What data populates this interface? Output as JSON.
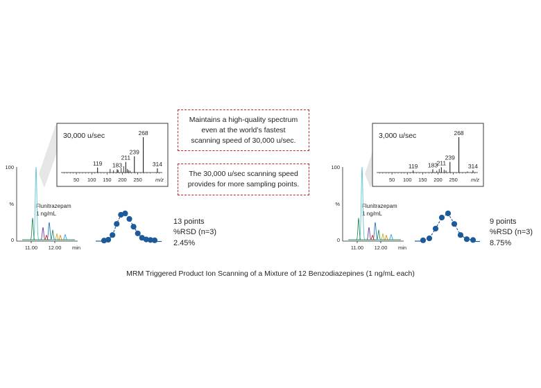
{
  "caption": "MRM Triggered Product Ion Scanning of a Mixture of 12 Benzodiazepines (1 ng/mL each)",
  "notes": [
    {
      "lines": [
        "Maintains a high-quality spectrum",
        "even at the world’s fastest",
        "scanning speed of 30,000 u/sec."
      ]
    },
    {
      "lines": [
        "The 30,000 u/sec scanning speed",
        "provides for more sampling points."
      ]
    }
  ],
  "accent_color": "#c1272d",
  "peak_color": "#1d5a99",
  "chart_data": [
    {
      "type": "line",
      "name": "chromatogram-left",
      "y_ticks": [
        "100",
        "%",
        "0"
      ],
      "x_ticks": [
        "11.00",
        "12.00"
      ],
      "x_unit": "min",
      "compound_label": [
        "Flunitrazepam",
        "1 ng/mL"
      ],
      "colors": [
        "#5bc3d0",
        "#2e8b57",
        "#6a3d9a",
        "#1f78b4",
        "#e31a1c",
        "#b2b23a",
        "#ff7f00",
        "#33a0dc"
      ]
    },
    {
      "type": "bar",
      "name": "spectrum-left",
      "title": "30,000 u/sec",
      "title_color": "#c1272d",
      "x_ticks": [
        50,
        100,
        150,
        200,
        250
      ],
      "xlim": [
        0,
        330
      ],
      "xlabel": "m/z",
      "labeled_peaks": [
        {
          "mz": 119,
          "label": "119",
          "rel": 0.14
        },
        {
          "mz": 183,
          "label": "183",
          "rel": 0.09
        },
        {
          "mz": 211,
          "label": "211",
          "rel": 0.3
        },
        {
          "mz": 239,
          "label": "239",
          "rel": 0.46
        },
        {
          "mz": 268,
          "label": "268",
          "rel": 1.0
        },
        {
          "mz": 314,
          "label": "314",
          "rel": 0.12
        }
      ],
      "minor_peaks": [
        {
          "mz": 160,
          "rel": 0.1
        },
        {
          "mz": 171,
          "rel": 0.06
        },
        {
          "mz": 186,
          "rel": 0.07
        },
        {
          "mz": 196,
          "rel": 0.13
        },
        {
          "mz": 204,
          "rel": 0.18
        },
        {
          "mz": 216,
          "rel": 0.1
        },
        {
          "mz": 220,
          "rel": 0.07
        },
        {
          "mz": 225,
          "rel": 0.05
        }
      ]
    },
    {
      "type": "scatter",
      "name": "sampling-left",
      "points": 13,
      "values": [
        0.02,
        0.05,
        0.22,
        0.62,
        0.95,
        1.0,
        0.8,
        0.52,
        0.28,
        0.12,
        0.06,
        0.04,
        0.03
      ],
      "label_points": "13 points",
      "label_rsd": "%RSD (n=3)",
      "label_value": "2.45%"
    },
    {
      "type": "line",
      "name": "chromatogram-right",
      "y_ticks": [
        "100",
        "%",
        "0"
      ],
      "x_ticks": [
        "11.00",
        "12.00"
      ],
      "x_unit": "min",
      "compound_label": [
        "Flunitrazepam",
        "1 ng/mL"
      ],
      "colors": [
        "#5bc3d0",
        "#2e8b57",
        "#6a3d9a",
        "#1f78b4",
        "#e31a1c",
        "#b2b23a",
        "#ff7f00",
        "#33a0dc"
      ]
    },
    {
      "type": "bar",
      "name": "spectrum-right",
      "title": "3,000 u/sec",
      "title_color": "#231f20",
      "x_ticks": [
        50,
        100,
        150,
        200,
        250
      ],
      "xlim": [
        0,
        330
      ],
      "xlabel": "m/z",
      "labeled_peaks": [
        {
          "mz": 119,
          "label": "119",
          "rel": 0.06
        },
        {
          "mz": 183,
          "label": "183",
          "rel": 0.09
        },
        {
          "mz": 211,
          "label": "211",
          "rel": 0.15
        },
        {
          "mz": 239,
          "label": "239",
          "rel": 0.3
        },
        {
          "mz": 268,
          "label": "268",
          "rel": 1.0
        },
        {
          "mz": 314,
          "label": "314",
          "rel": 0.06
        }
      ],
      "minor_peaks": [
        {
          "mz": 196,
          "rel": 0.05
        },
        {
          "mz": 204,
          "rel": 0.1
        },
        {
          "mz": 220,
          "rel": 0.08
        },
        {
          "mz": 226,
          "rel": 0.06
        },
        {
          "mz": 296,
          "rel": 0.03
        }
      ]
    },
    {
      "type": "scatter",
      "name": "sampling-right",
      "points": 9,
      "values": [
        0.03,
        0.1,
        0.45,
        0.85,
        1.0,
        0.62,
        0.22,
        0.07,
        0.04
      ],
      "label_points": "9 points",
      "label_rsd": "%RSD (n=3)",
      "label_value": "8.75%"
    }
  ]
}
